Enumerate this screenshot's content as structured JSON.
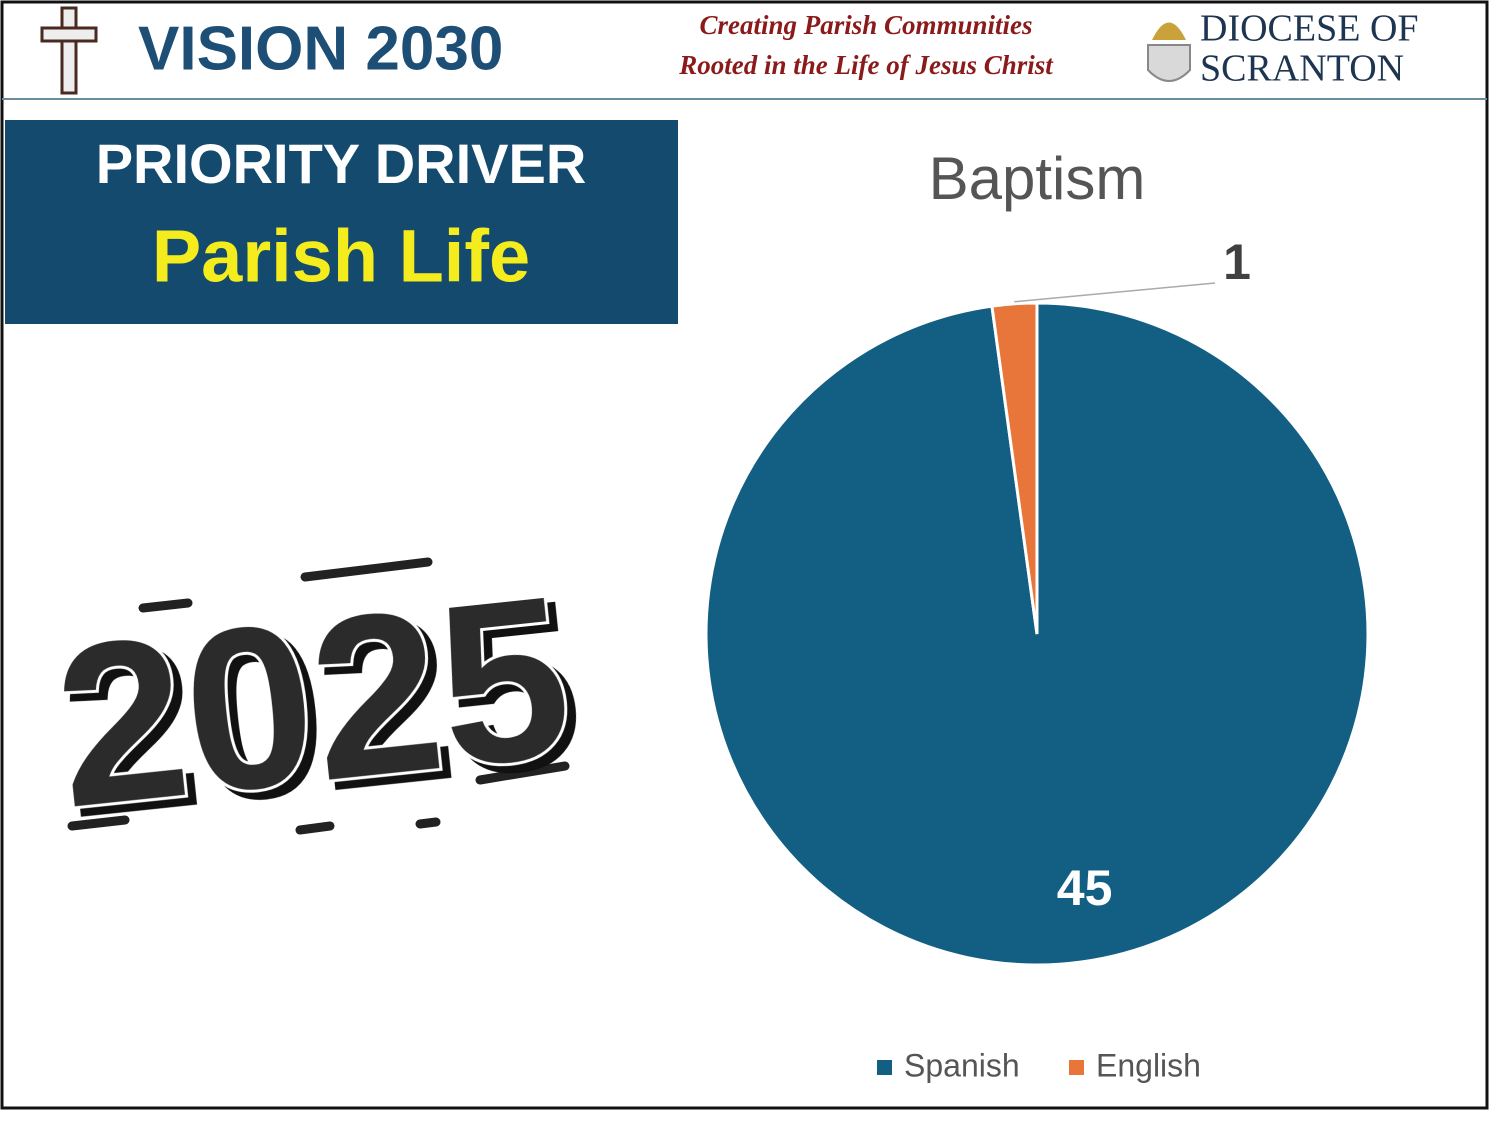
{
  "header": {
    "title": "VISION 2030",
    "tagline": [
      "Creating Parish Communities",
      "Rooted in the Life of Jesus Christ"
    ],
    "diocese": [
      "DIOCESE OF",
      "SCRANTON"
    ]
  },
  "banner": {
    "label": "PRIORITY DRIVER",
    "title": "Parish Life"
  },
  "year_graphic": "2025",
  "chart_data": {
    "type": "pie",
    "title": "Baptism",
    "categories": [
      "Spanish",
      "English"
    ],
    "values": [
      45,
      1
    ],
    "colors": [
      "#135f83",
      "#e8763a"
    ],
    "legend": "bottom"
  }
}
